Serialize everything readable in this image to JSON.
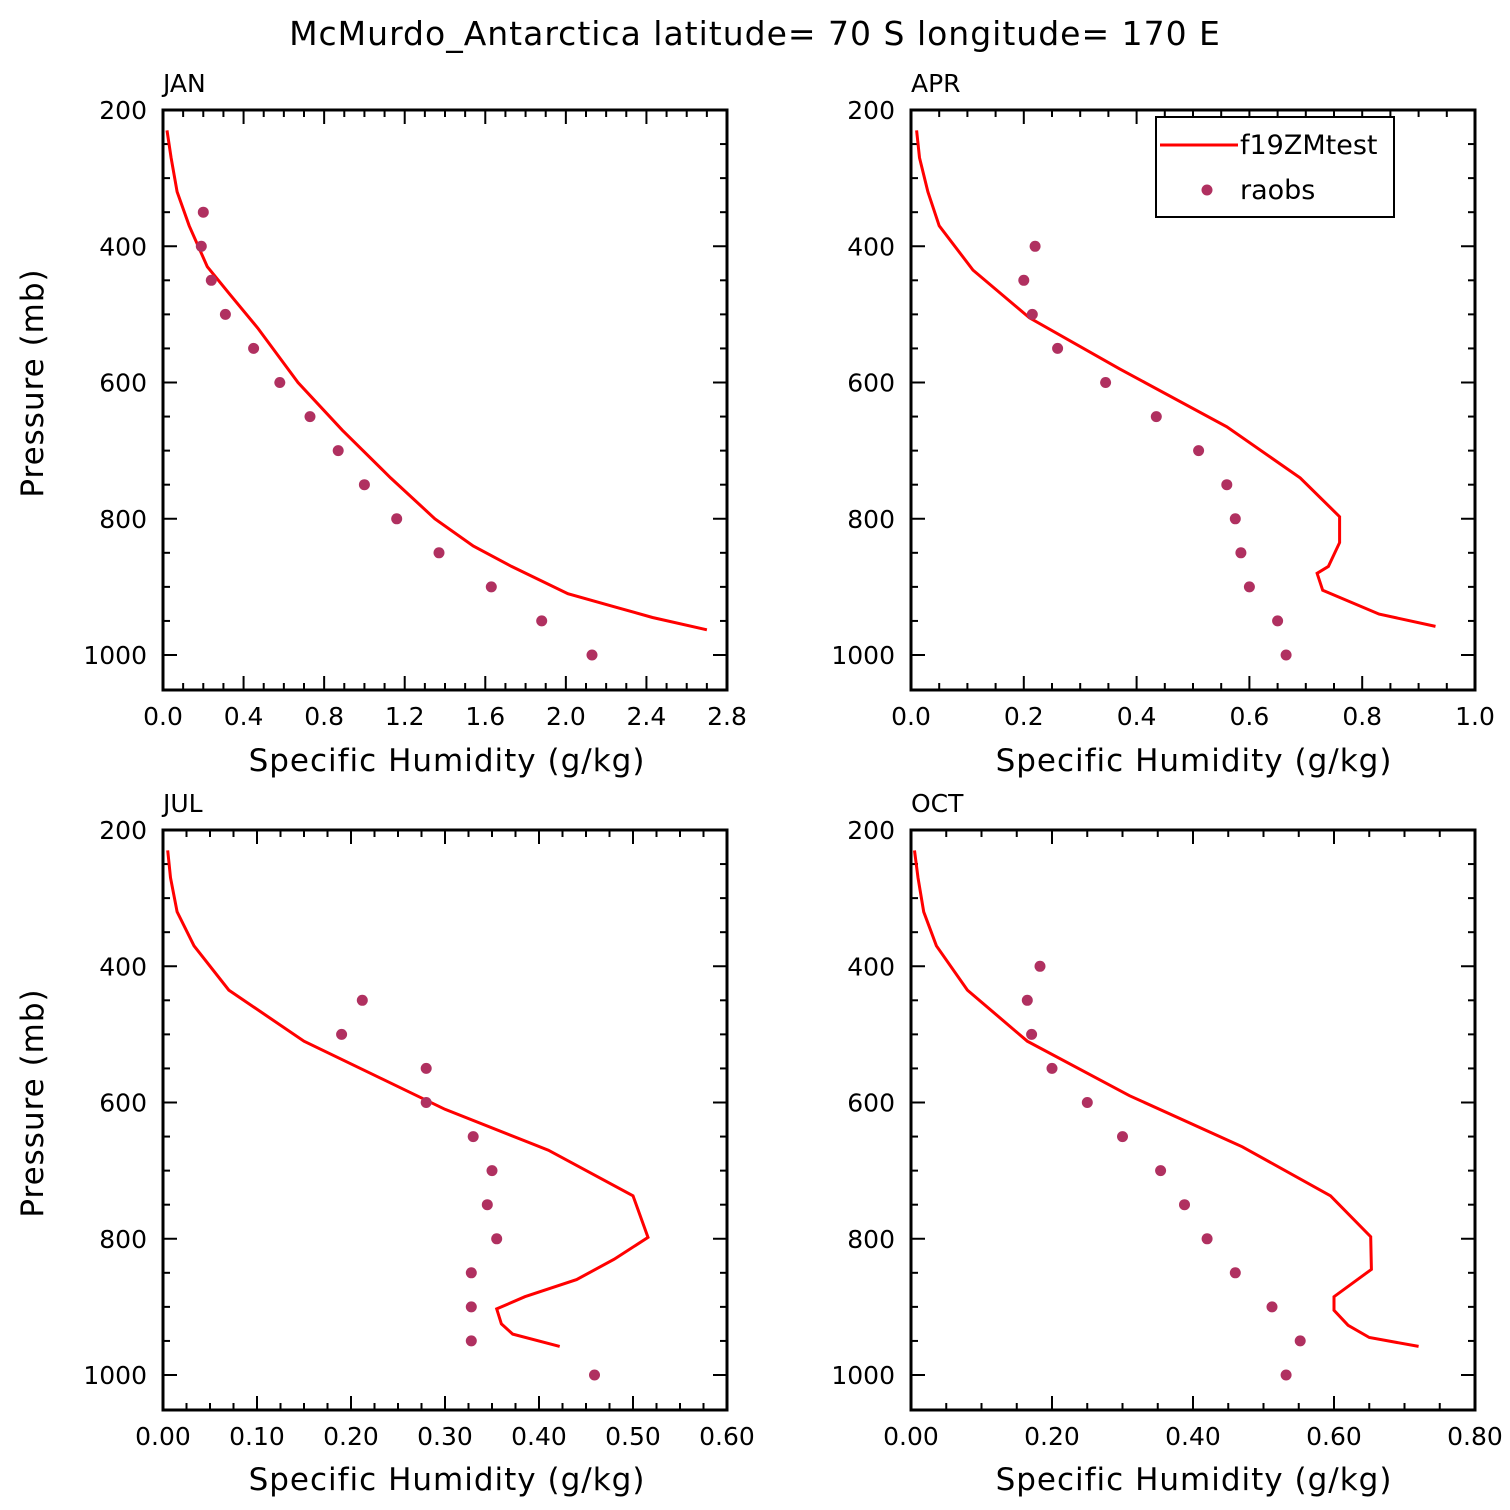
{
  "title": "McMurdo_Antarctica  latitude= 70 S longitude= 170 E",
  "legend": {
    "model_label": "f19ZMtest",
    "obs_label": "raobs",
    "model_color": "#ff0000",
    "obs_color": "#b03060"
  },
  "chart_data": [
    {
      "type": "line",
      "title": "JAN",
      "xlabel": "Specific Humidity (g/kg)",
      "ylabel": "Pressure (mb)",
      "xlim": [
        0.0,
        2.8
      ],
      "ylim": [
        200,
        1000
      ],
      "y_inverted": true,
      "x_ticks": [
        "0.0",
        "0.4",
        "0.8",
        "1.2",
        "1.6",
        "2.0",
        "2.4",
        "2.8"
      ],
      "y_ticks": [
        "200",
        "400",
        "600",
        "800",
        "1000"
      ],
      "series": [
        {
          "name": "f19ZMtest",
          "style": "line",
          "x": [
            0.02,
            0.04,
            0.07,
            0.13,
            0.22,
            0.33,
            0.47,
            0.67,
            0.89,
            1.13,
            1.35,
            1.54,
            1.73,
            2.01,
            2.25,
            2.43,
            2.7
          ],
          "y": [
            230,
            270,
            320,
            370,
            430,
            470,
            520,
            600,
            670,
            740,
            800,
            840,
            870,
            910,
            930,
            945,
            963
          ]
        },
        {
          "name": "raobs",
          "style": "markers",
          "x": [
            0.2,
            0.19,
            0.24,
            0.31,
            0.45,
            0.58,
            0.73,
            0.87,
            1.0,
            1.16,
            1.37,
            1.63,
            1.88,
            2.13
          ],
          "y": [
            350,
            400,
            450,
            500,
            550,
            600,
            650,
            700,
            750,
            800,
            850,
            900,
            950,
            1000
          ]
        }
      ]
    },
    {
      "type": "line",
      "title": "APR",
      "xlabel": "Specific Humidity (g/kg)",
      "ylabel": "",
      "xlim": [
        0.0,
        1.0
      ],
      "ylim": [
        200,
        1000
      ],
      "y_inverted": true,
      "x_ticks": [
        "0.0",
        "0.2",
        "0.4",
        "0.6",
        "0.8",
        "1.0"
      ],
      "y_ticks": [
        "200",
        "400",
        "600",
        "800",
        "1000"
      ],
      "series": [
        {
          "name": "f19ZMtest",
          "style": "line",
          "x": [
            0.01,
            0.015,
            0.03,
            0.05,
            0.11,
            0.21,
            0.37,
            0.56,
            0.69,
            0.76,
            0.76,
            0.74,
            0.72,
            0.73,
            0.83,
            0.93
          ],
          "y": [
            230,
            270,
            320,
            370,
            435,
            505,
            580,
            665,
            740,
            797,
            835,
            870,
            880,
            905,
            940,
            958
          ]
        },
        {
          "name": "raobs",
          "style": "markers",
          "x": [
            0.22,
            0.2,
            0.215,
            0.26,
            0.345,
            0.435,
            0.51,
            0.56,
            0.575,
            0.585,
            0.6,
            0.65,
            0.665
          ],
          "y": [
            400,
            450,
            500,
            550,
            600,
            650,
            700,
            750,
            800,
            850,
            900,
            950,
            1000
          ]
        }
      ]
    },
    {
      "type": "line",
      "title": "JUL",
      "xlabel": "Specific Humidity (g/kg)",
      "ylabel": "Pressure (mb)",
      "xlim": [
        0.0,
        0.6
      ],
      "ylim": [
        200,
        1000
      ],
      "y_inverted": true,
      "x_ticks": [
        "0.00",
        "0.10",
        "0.20",
        "0.30",
        "0.40",
        "0.50",
        "0.60"
      ],
      "y_ticks": [
        "200",
        "400",
        "600",
        "800",
        "1000"
      ],
      "series": [
        {
          "name": "f19ZMtest",
          "style": "line",
          "x": [
            0.005,
            0.008,
            0.015,
            0.033,
            0.07,
            0.15,
            0.3,
            0.41,
            0.5,
            0.516,
            0.48,
            0.44,
            0.385,
            0.355,
            0.36,
            0.372,
            0.422
          ],
          "y": [
            230,
            270,
            320,
            370,
            435,
            510,
            610,
            670,
            737,
            798,
            830,
            860,
            885,
            903,
            925,
            940,
            958
          ]
        },
        {
          "name": "raobs",
          "style": "markers",
          "x": [
            0.212,
            0.19,
            0.28,
            0.28,
            0.33,
            0.35,
            0.345,
            0.355,
            0.328,
            0.328,
            0.328,
            0.459
          ],
          "y": [
            450,
            500,
            550,
            600,
            650,
            700,
            750,
            800,
            850,
            900,
            950,
            1000
          ]
        }
      ]
    },
    {
      "type": "line",
      "title": "OCT",
      "xlabel": "Specific Humidity (g/kg)",
      "ylabel": "",
      "xlim": [
        0.0,
        0.8
      ],
      "ylim": [
        200,
        1000
      ],
      "y_inverted": true,
      "x_ticks": [
        "0.00",
        "0.20",
        "0.40",
        "0.60",
        "0.80"
      ],
      "y_ticks": [
        "200",
        "400",
        "600",
        "800",
        "1000"
      ],
      "series": [
        {
          "name": "f19ZMtest",
          "style": "line",
          "x": [
            0.005,
            0.01,
            0.018,
            0.036,
            0.08,
            0.165,
            0.31,
            0.47,
            0.595,
            0.652,
            0.653,
            0.6,
            0.6,
            0.62,
            0.65,
            0.72
          ],
          "y": [
            230,
            270,
            320,
            370,
            435,
            510,
            590,
            665,
            737,
            797,
            845,
            885,
            905,
            927,
            945,
            958
          ]
        },
        {
          "name": "raobs",
          "style": "markers",
          "x": [
            0.183,
            0.165,
            0.171,
            0.2,
            0.25,
            0.3,
            0.354,
            0.388,
            0.42,
            0.46,
            0.512,
            0.552,
            0.532
          ],
          "y": [
            400,
            450,
            500,
            550,
            600,
            650,
            700,
            750,
            800,
            850,
            900,
            950,
            1000
          ]
        }
      ]
    }
  ]
}
